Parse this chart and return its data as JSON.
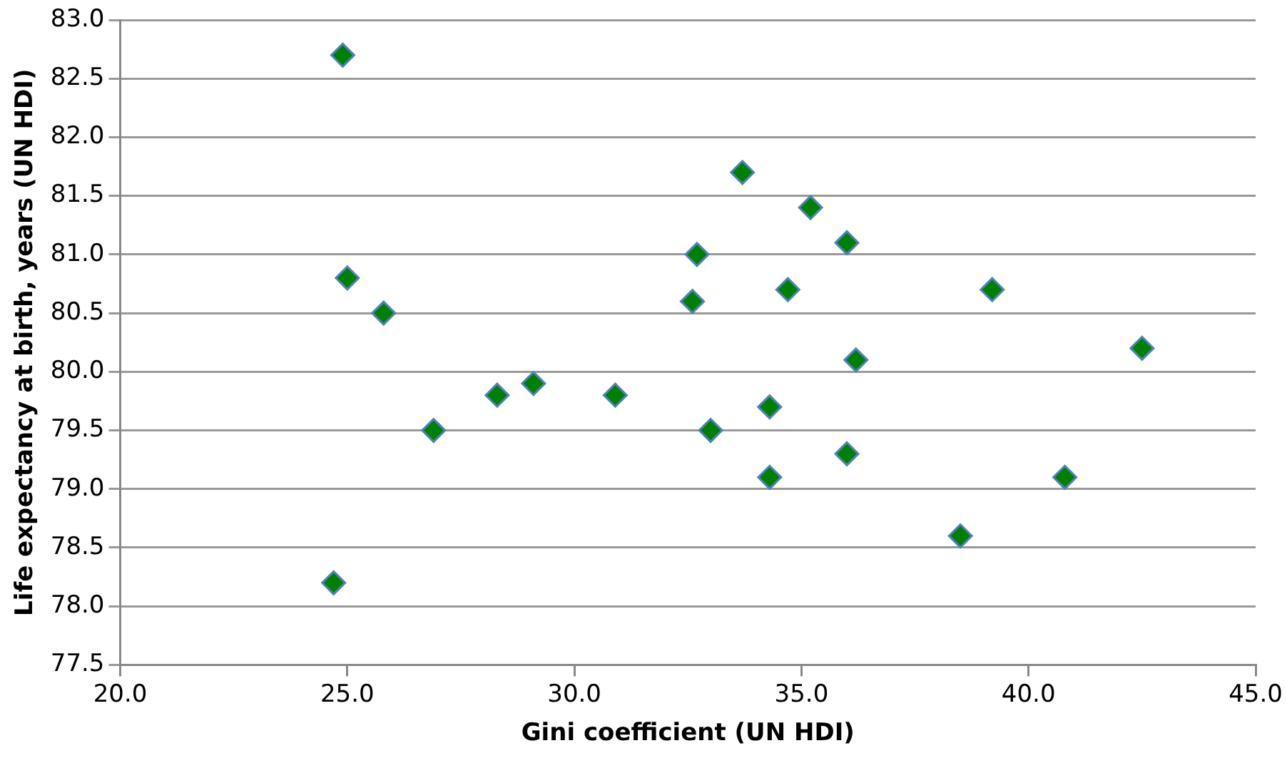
{
  "chart_data": {
    "type": "scatter",
    "xlabel": "Gini coefficient (UN HDI)",
    "ylabel": "Life expectancy at birth, years (UN HDI)",
    "x": [
      24.9,
      25.0,
      25.8,
      26.9,
      28.3,
      29.1,
      30.9,
      24.7,
      33.7,
      35.2,
      36.0,
      32.7,
      32.6,
      34.7,
      39.2,
      42.5,
      36.2,
      34.3,
      33.0,
      36.0,
      34.3,
      40.8,
      38.5
    ],
    "values": [
      82.7,
      80.8,
      80.5,
      79.5,
      79.8,
      79.9,
      79.8,
      78.2,
      81.7,
      81.4,
      81.1,
      81.0,
      80.6,
      80.7,
      80.7,
      80.2,
      80.1,
      79.7,
      79.5,
      79.3,
      79.1,
      79.1,
      78.6
    ],
    "color": "#008000",
    "marker": "diamond",
    "xlim": [
      20,
      45
    ],
    "xticks": [
      {
        "value": 20,
        "label": "20.0"
      },
      {
        "value": 25,
        "label": "25.0"
      },
      {
        "value": 30,
        "label": "30.0"
      },
      {
        "value": 35,
        "label": "35.0"
      },
      {
        "value": 40,
        "label": "40.0"
      },
      {
        "value": 45,
        "label": "45.0"
      }
    ],
    "ylim": [
      77.5,
      83
    ],
    "yticks": [
      {
        "value": 77.5,
        "label": "77.5"
      },
      {
        "value": 78,
        "label": "78.0"
      },
      {
        "value": 78.5,
        "label": "78.5"
      },
      {
        "value": 79,
        "label": "79.0"
      },
      {
        "value": 79.5,
        "label": "79.5"
      },
      {
        "value": 80,
        "label": "80.0"
      },
      {
        "value": 80.5,
        "label": "80.5"
      },
      {
        "value": 81,
        "label": "81.0"
      },
      {
        "value": 81.5,
        "label": "81.5"
      },
      {
        "value": 82,
        "label": "82.0"
      },
      {
        "value": 82.5,
        "label": "82.5"
      },
      {
        "value": 83,
        "label": "83.0"
      }
    ],
    "grid": "y",
    "legend": false
  }
}
